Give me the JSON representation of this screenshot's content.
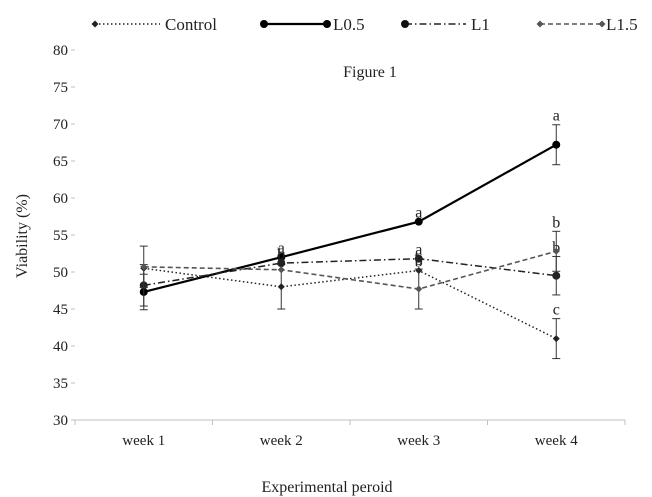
{
  "chart_data": {
    "type": "line",
    "annotation_title": "Figure 1",
    "xlabel": "Experimental  peroid",
    "ylabel": "Viability  (%)",
    "ylim": [
      30,
      80
    ],
    "yticks": [
      30,
      35,
      40,
      45,
      50,
      55,
      60,
      65,
      70,
      75,
      80
    ],
    "categories": [
      "week 1",
      "week 2",
      "week 3",
      "week 4"
    ],
    "grid": false,
    "legend_position": "top",
    "series": [
      {
        "name": "Control",
        "values": [
          50.5,
          48.0,
          50.2,
          41.0
        ],
        "errors": [
          0.0,
          3.0,
          0.0,
          2.7
        ],
        "line_style": "dotted",
        "marker": "diamond",
        "color": "#222222",
        "labels": [
          "",
          "b",
          "b",
          "c"
        ]
      },
      {
        "name": "L0.5",
        "values": [
          47.3,
          52.0,
          56.8,
          67.2
        ],
        "errors": [
          2.4,
          0.0,
          0.0,
          2.7
        ],
        "line_style": "solid",
        "marker": "circle",
        "color": "#000000",
        "labels": [
          "",
          "a",
          "a",
          "a"
        ]
      },
      {
        "name": "L1",
        "values": [
          48.2,
          51.2,
          51.8,
          49.5
        ],
        "errors": [
          2.8,
          0.0,
          0.0,
          2.6
        ],
        "line_style": "dashdot",
        "marker": "circle",
        "color": "#222222",
        "labels": [
          "",
          "b",
          "a",
          "b"
        ]
      },
      {
        "name": "L1.5",
        "values": [
          50.7,
          50.3,
          47.7,
          52.8
        ],
        "errors": [
          2.8,
          0.0,
          2.7,
          2.7
        ],
        "line_style": "dashed",
        "marker": "diamond",
        "color": "#555555",
        "labels": [
          "",
          "b",
          "b",
          "b"
        ]
      }
    ]
  }
}
